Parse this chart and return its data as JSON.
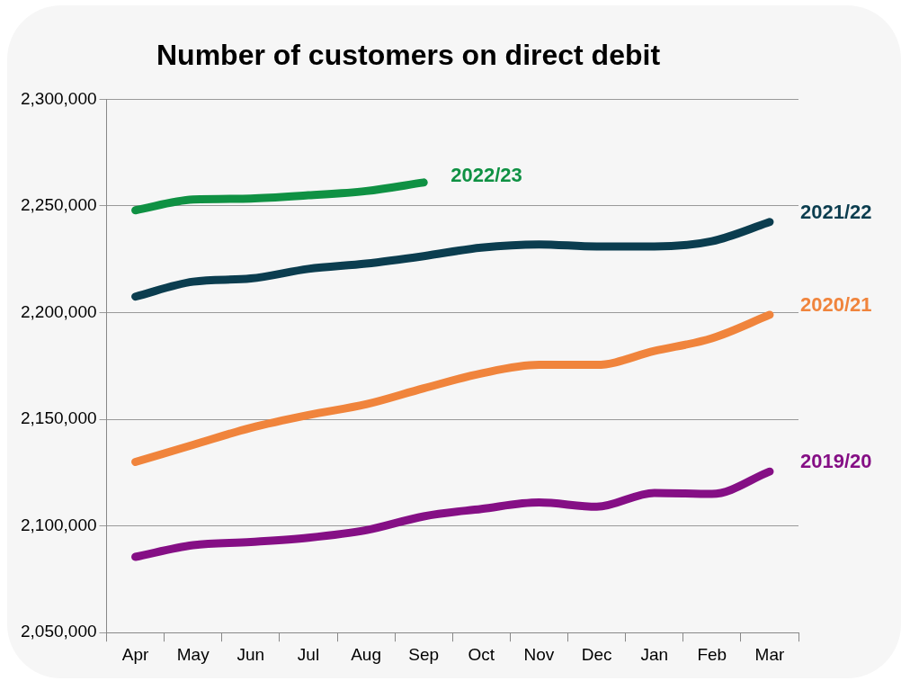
{
  "chart_data": {
    "type": "line",
    "title": "Number of customers on direct debit",
    "categories": [
      "Apr",
      "May",
      "Jun",
      "Jul",
      "Aug",
      "Sep",
      "Oct",
      "Nov",
      "Dec",
      "Jan",
      "Feb",
      "Mar"
    ],
    "series": [
      {
        "name": "2022/23",
        "color": "#0f9143",
        "values": [
          2248000,
          2253000,
          2253500,
          2255000,
          2257000,
          2261000,
          null,
          null,
          null,
          null,
          null,
          null
        ]
      },
      {
        "name": "2021/22",
        "color": "#0b3d4f",
        "values": [
          2207500,
          2214500,
          2216000,
          2220500,
          2223000,
          2226500,
          2230500,
          2232000,
          2231000,
          2231000,
          2233500,
          2242500
        ]
      },
      {
        "name": "2020/21",
        "color": "#f0843c",
        "values": [
          2130000,
          2138000,
          2146000,
          2152000,
          2157000,
          2164500,
          2171500,
          2175500,
          2175500,
          2182000,
          2188000,
          2199000
        ]
      },
      {
        "name": "2019/20",
        "color": "#850f85",
        "values": [
          2085500,
          2091000,
          2092500,
          2094500,
          2098000,
          2104500,
          2108000,
          2111000,
          2109000,
          2115500,
          2115000,
          2125500
        ]
      }
    ],
    "ylim": [
      2050000,
      2300000
    ],
    "yticks": [
      {
        "value": 2050000,
        "label": "2,050,000"
      },
      {
        "value": 2100000,
        "label": "2,100,000"
      },
      {
        "value": 2150000,
        "label": "2,150,000"
      },
      {
        "value": 2200000,
        "label": "2,200,000"
      },
      {
        "value": 2250000,
        "label": "2,250,000"
      },
      {
        "value": 2300000,
        "label": "2,300,000"
      }
    ],
    "grid": "y",
    "legend": false,
    "marker": "none",
    "line_style": "solid"
  }
}
